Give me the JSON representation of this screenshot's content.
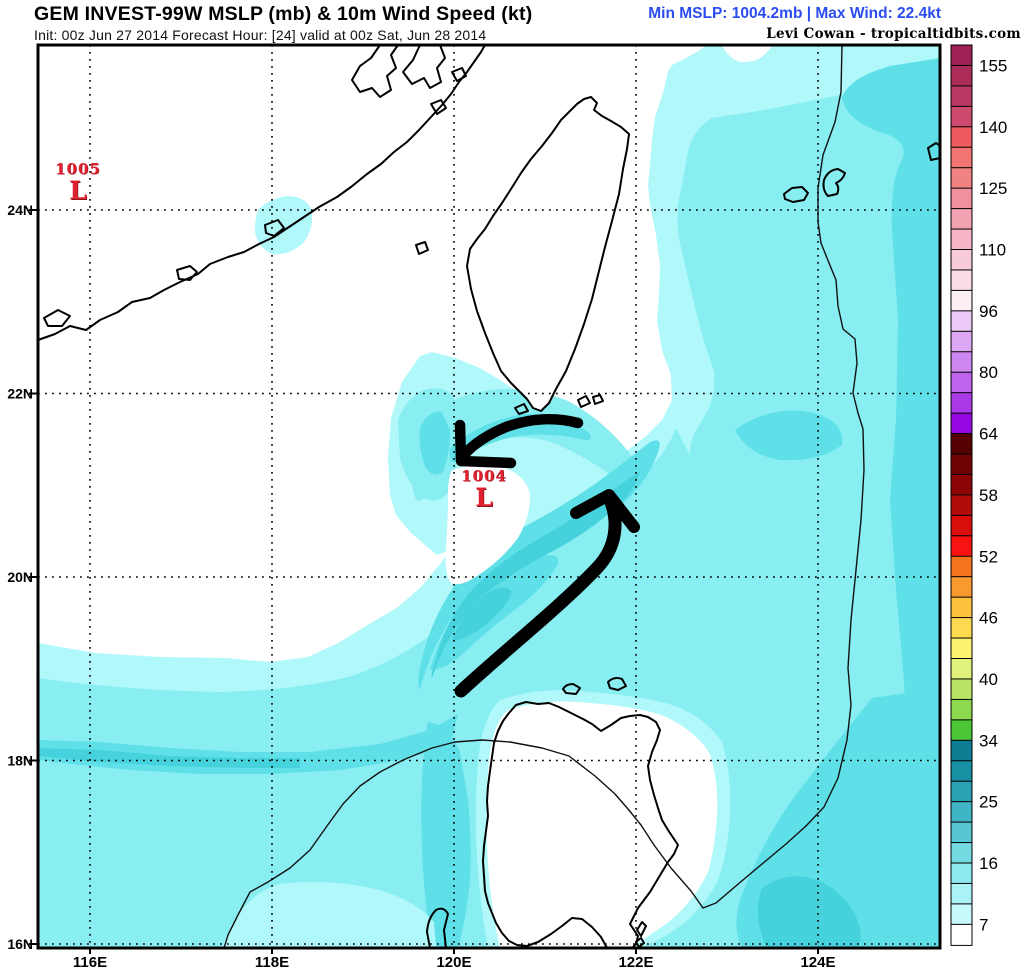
{
  "header": {
    "title": "GEM INVEST-99W MSLP (mb) & 10m Wind Speed (kt)",
    "subtitle": "Init: 00z Jun 27 2014 Forecast Hour: [24] valid at 00z Sat, Jun 28 2014",
    "stats": "Min MSLP: 1004.2mb | Max Wind: 22.4kt",
    "credit": "Levi Cowan - tropicaltidbits.com"
  },
  "map": {
    "x_tick_labels": [
      "116E",
      "118E",
      "120E",
      "122E",
      "124E"
    ],
    "y_tick_labels": [
      "24N",
      "22N",
      "20N",
      "18N",
      "16N"
    ],
    "low_markers": [
      {
        "label": "1005",
        "symbol": "L"
      },
      {
        "label": "1004",
        "symbol": "L"
      }
    ]
  },
  "colorbar": {
    "unit": "kt",
    "tick_labels": [
      "155",
      "140",
      "125",
      "110",
      "96",
      "80",
      "64",
      "58",
      "52",
      "46",
      "40",
      "34",
      "25",
      "16",
      "7"
    ],
    "tick_boundaries": [
      1,
      4,
      7,
      10,
      13,
      16,
      19,
      22,
      25,
      28,
      31,
      34,
      37,
      40,
      43
    ],
    "cells_top_to_bottom": [
      "#9e2153",
      "#ab2b59",
      "#bb3a64",
      "#cb4a6d",
      "#ee5a5e",
      "#f27471",
      "#f18282",
      "#f18f9c",
      "#f3a2b2",
      "#f5b5c6",
      "#f8cbda",
      "#fadce8",
      "#fdeef6",
      "#eccaf8",
      "#dca8f4",
      "#cc87f0",
      "#bd63ec",
      "#aa3ae7",
      "#9608e1",
      "#550101",
      "#6f0303",
      "#8b0505",
      "#b30a0a",
      "#da0d0d",
      "#f81212",
      "#f4731f",
      "#f99a30",
      "#fcc23e",
      "#fcd94e",
      "#fdf26e",
      "#e2f37c",
      "#b9e567",
      "#8cd94e",
      "#4cc738",
      "#0d7e94",
      "#1890a4",
      "#2aa2b4",
      "#3fb5c5",
      "#57c8d2",
      "#74d9e0",
      "#8ce9ee",
      "#aaf2f6",
      "#c8fafb",
      "#ffffff"
    ]
  },
  "palette": {
    "wind_shade_1": "#b0f8fa",
    "wind_shade_2": "#88eef2",
    "wind_shade_3": "#5fe0e8",
    "wind_shade_4": "#46d2dc",
    "stats_text": "#2b4cf0",
    "low_marker": "#e0222f",
    "line": "#000000"
  },
  "chart_data": {
    "type": "heatmap",
    "title": "GEM INVEST-99W MSLP (mb) & 10m Wind Speed (kt)",
    "model": "GEM",
    "storm": "INVEST-99W",
    "init": "00z Jun 27 2014",
    "forecast_hour": 24,
    "valid": "00z Sat, Jun 28 2014",
    "min_mslp_mb": 1004.2,
    "max_wind_kt": 22.4,
    "x_axis": {
      "label": "longitude",
      "ticks": [
        "116E",
        "118E",
        "120E",
        "122E",
        "124E"
      ]
    },
    "y_axis": {
      "label": "latitude",
      "ticks": [
        "16N",
        "18N",
        "20N",
        "22N",
        "24N"
      ]
    },
    "colorbar_ticks_kt": [
      7,
      16,
      25,
      34,
      40,
      46,
      52,
      58,
      64,
      80,
      96,
      110,
      125,
      140,
      155
    ],
    "shaded_wind_levels_on_map_kt": [
      7,
      10,
      13,
      16,
      19
    ],
    "pressure_centers": [
      {
        "label": "1005",
        "symbol": "L",
        "approx_lon": "115.8E",
        "approx_lat": "24.2N"
      },
      {
        "label": "1004",
        "symbol": "L",
        "approx_lon": "120.3E",
        "approx_lat": "20.8N"
      }
    ],
    "annotations": [
      {
        "type": "hand-drawn-arrow",
        "description": "thick black arrow curving west then hooking southwest, ending just north of the 1004 low"
      },
      {
        "type": "hand-drawn-arrow",
        "description": "thick black arrow pointing northeast from south of the 1004 low toward the Luzon Strait"
      }
    ],
    "legend_position": "right",
    "grid": "dotted lat/lon grid every 2 degrees"
  }
}
